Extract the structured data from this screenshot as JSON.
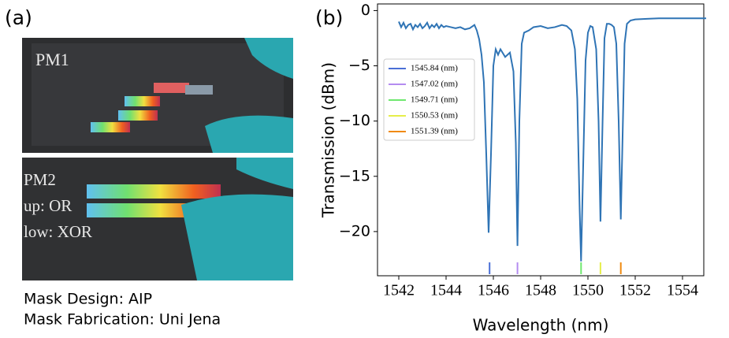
{
  "panel_a": {
    "label": "(a)",
    "photo_labels": [
      "PM1",
      "PM2",
      "up: OR",
      "low: XOR"
    ],
    "captions": [
      "Mask Design: AIP",
      "Mask Fabrication: Uni Jena"
    ]
  },
  "panel_b_label": "(b)",
  "chart_data": {
    "type": "line",
    "x_label": "Wavelength (nm)",
    "y_label": "Transmission (dBm)",
    "xlim": [
      1541.1,
      1554.9
    ],
    "ylim": [
      -24,
      0.6
    ],
    "xticks": [
      1542,
      1544,
      1546,
      1548,
      1550,
      1552,
      1554
    ],
    "yticks": [
      0,
      {
        "value": -5,
        "label": "−5"
      },
      {
        "value": -10,
        "label": "−10"
      },
      {
        "value": -15,
        "label": "−15"
      },
      {
        "value": -20,
        "label": "−20"
      }
    ],
    "x": [
      1542.0,
      1542.1,
      1542.2,
      1542.3,
      1542.4,
      1542.5,
      1542.6,
      1542.7,
      1542.8,
      1542.9,
      1543.0,
      1543.1,
      1543.2,
      1543.3,
      1543.4,
      1543.5,
      1543.6,
      1543.7,
      1543.8,
      1543.9,
      1544.0,
      1544.2,
      1544.4,
      1544.6,
      1544.8,
      1545.0,
      1545.2,
      1545.3,
      1545.4,
      1545.5,
      1545.6,
      1545.7,
      1545.8,
      1545.9,
      1546.0,
      1546.1,
      1546.2,
      1546.3,
      1546.5,
      1546.7,
      1546.85,
      1546.95,
      1547.02,
      1547.1,
      1547.2,
      1547.3,
      1547.5,
      1547.7,
      1548.0,
      1548.3,
      1548.6,
      1548.9,
      1549.1,
      1549.3,
      1549.45,
      1549.55,
      1549.65,
      1549.71,
      1549.8,
      1549.9,
      1550.0,
      1550.1,
      1550.2,
      1550.35,
      1550.45,
      1550.53,
      1550.62,
      1550.7,
      1550.8,
      1550.9,
      1551.0,
      1551.1,
      1551.2,
      1551.3,
      1551.39,
      1551.48,
      1551.55,
      1551.65,
      1551.8,
      1552.0,
      1552.5,
      1553.0,
      1554.0,
      1555.0
    ],
    "series": [
      {
        "color": "#2f74b5",
        "values": [
          -1.0,
          -1.5,
          -1.1,
          -1.6,
          -1.3,
          -1.2,
          -1.7,
          -1.3,
          -1.5,
          -1.2,
          -1.6,
          -1.4,
          -1.1,
          -1.6,
          -1.3,
          -1.5,
          -1.2,
          -1.6,
          -1.3,
          -1.5,
          -1.4,
          -1.5,
          -1.6,
          -1.5,
          -1.7,
          -1.6,
          -1.3,
          -1.8,
          -2.6,
          -4.0,
          -6.5,
          -13.0,
          -20.1,
          -13.0,
          -5.0,
          -3.5,
          -4.0,
          -3.5,
          -4.2,
          -3.8,
          -5.5,
          -12.0,
          -21.3,
          -10.0,
          -3.0,
          -2.0,
          -1.8,
          -1.5,
          -1.4,
          -1.6,
          -1.5,
          -1.3,
          -1.4,
          -1.8,
          -3.5,
          -8.0,
          -18.0,
          -22.7,
          -14.0,
          -4.5,
          -2.0,
          -1.4,
          -1.5,
          -3.5,
          -10.0,
          -19.1,
          -10.0,
          -2.5,
          -1.2,
          -1.2,
          -1.3,
          -1.5,
          -3.0,
          -10.0,
          -18.9,
          -10.0,
          -3.0,
          -1.2,
          -0.9,
          -0.8,
          -0.75,
          -0.7,
          -0.7,
          -0.7
        ]
      }
    ],
    "markers": [
      {
        "name": "1545.84 (nm)",
        "color": "#4a6fd6",
        "x": 1545.84
      },
      {
        "name": "1547.02 (nm)",
        "color": "#b48cf0",
        "x": 1547.02
      },
      {
        "name": "1549.71 (nm)",
        "color": "#6fe86f",
        "x": 1549.71
      },
      {
        "name": "1550.53 (nm)",
        "color": "#e6ee4a",
        "x": 1550.53
      },
      {
        "name": "1551.39 (nm)",
        "color": "#f08a10",
        "x": 1551.39
      }
    ]
  }
}
